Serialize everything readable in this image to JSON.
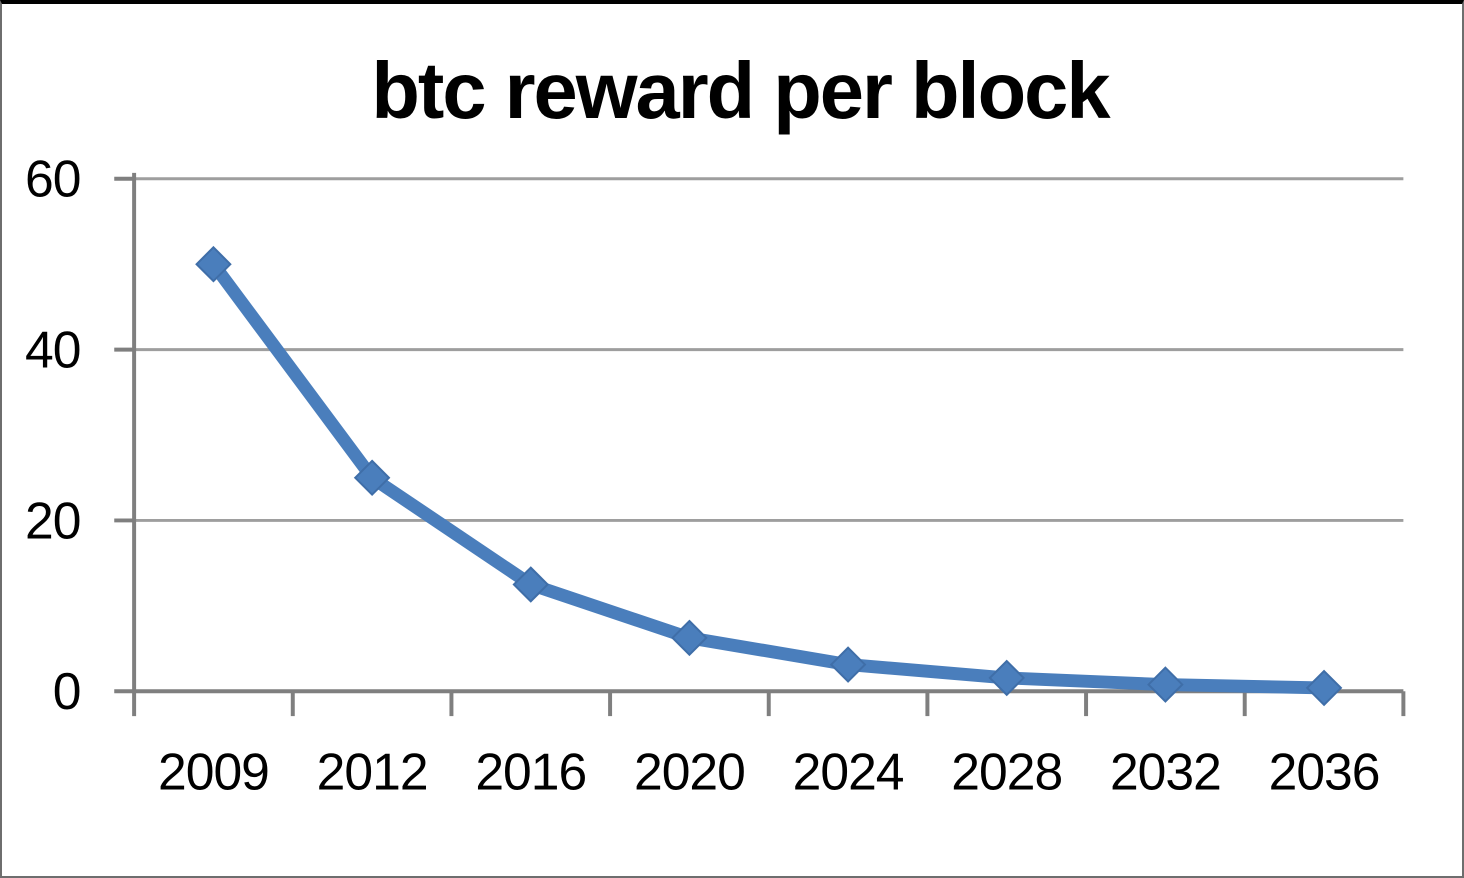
{
  "chart_data": {
    "type": "line",
    "title": "btc reward per block",
    "categories": [
      "2009",
      "2012",
      "2016",
      "2020",
      "2024",
      "2028",
      "2032",
      "2036"
    ],
    "series": [
      {
        "name": "btc reward per block",
        "values": [
          50,
          25,
          12.5,
          6.25,
          3.125,
          1.5625,
          0.78125,
          0.390625
        ],
        "marker": "diamond"
      }
    ],
    "xlabel": "",
    "ylabel": "",
    "ylim": [
      0,
      60
    ],
    "yticks": [
      0,
      20,
      40,
      60
    ],
    "grid": "horizontal",
    "legend": "none",
    "colors": {
      "line": "#4a7ebc",
      "marker_fill": "#4a7ebc",
      "marker_edge": "#3f6ea8",
      "gridline": "#9e9e9e",
      "axis": "#7f7f7f",
      "title": "#000000",
      "labels": "#000000",
      "background": "#ffffff"
    }
  }
}
